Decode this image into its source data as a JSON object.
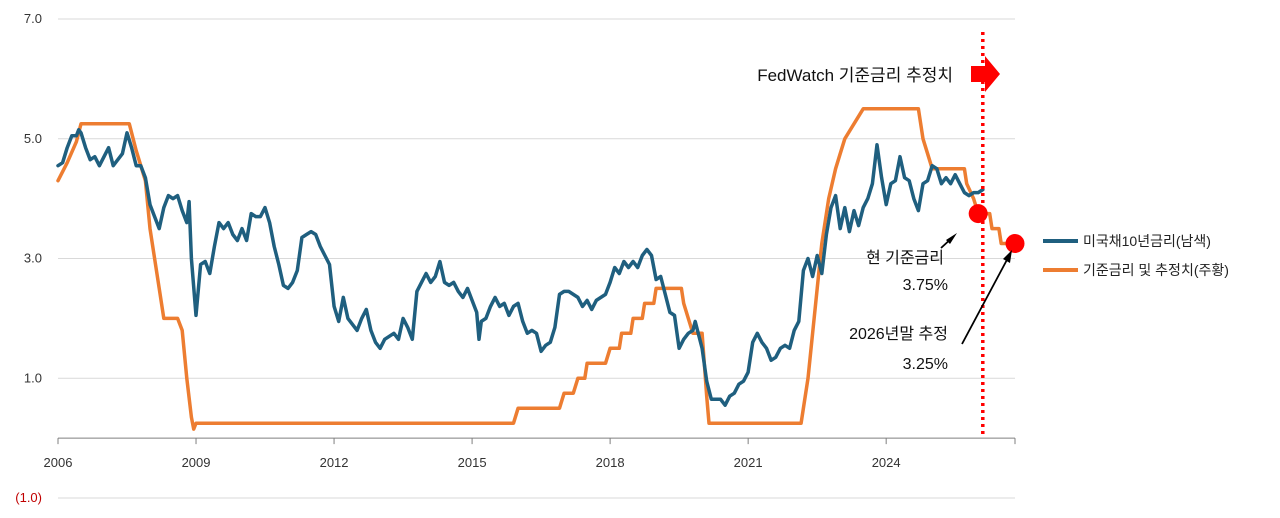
{
  "chart_data": {
    "type": "line",
    "yticks": [
      {
        "value": 7.0,
        "label": "7.0"
      },
      {
        "value": 5.0,
        "label": "5.0"
      },
      {
        "value": 3.0,
        "label": "3.0"
      },
      {
        "value": 1.0,
        "label": "1.0"
      },
      {
        "value": -1.0,
        "label": "(1.0)"
      }
    ],
    "xticks": [
      "2006",
      "2009",
      "2012",
      "2015",
      "2018",
      "2021",
      "2024"
    ],
    "xlim": [
      2006.0,
      2026.8
    ],
    "ylim": [
      -1.0,
      7.0
    ],
    "grid": true,
    "legend_position": "right",
    "colors": {
      "treasury": "#1f5f7f",
      "policy": "#ed7d31",
      "marker": "#ff0000",
      "forecast_line": "#ff0000"
    },
    "series": [
      {
        "name": "미국채10년금리(남색)",
        "color": "#1f5f7f",
        "points": [
          [
            2006.0,
            4.55
          ],
          [
            2006.1,
            4.6
          ],
          [
            2006.2,
            4.85
          ],
          [
            2006.3,
            5.05
          ],
          [
            2006.4,
            5.05
          ],
          [
            2006.45,
            5.15
          ],
          [
            2006.5,
            5.1
          ],
          [
            2006.6,
            4.85
          ],
          [
            2006.7,
            4.65
          ],
          [
            2006.8,
            4.7
          ],
          [
            2006.9,
            4.55
          ],
          [
            2007.0,
            4.7
          ],
          [
            2007.1,
            4.85
          ],
          [
            2007.2,
            4.55
          ],
          [
            2007.3,
            4.65
          ],
          [
            2007.4,
            4.75
          ],
          [
            2007.5,
            5.1
          ],
          [
            2007.6,
            4.85
          ],
          [
            2007.7,
            4.55
          ],
          [
            2007.8,
            4.55
          ],
          [
            2007.9,
            4.35
          ],
          [
            2008.0,
            3.9
          ],
          [
            2008.1,
            3.7
          ],
          [
            2008.2,
            3.5
          ],
          [
            2008.3,
            3.85
          ],
          [
            2008.4,
            4.05
          ],
          [
            2008.5,
            4.0
          ],
          [
            2008.6,
            4.05
          ],
          [
            2008.7,
            3.8
          ],
          [
            2008.8,
            3.6
          ],
          [
            2008.85,
            3.95
          ],
          [
            2008.9,
            3.0
          ],
          [
            2009.0,
            2.05
          ],
          [
            2009.1,
            2.9
          ],
          [
            2009.2,
            2.95
          ],
          [
            2009.3,
            2.75
          ],
          [
            2009.4,
            3.2
          ],
          [
            2009.5,
            3.6
          ],
          [
            2009.6,
            3.5
          ],
          [
            2009.7,
            3.6
          ],
          [
            2009.8,
            3.4
          ],
          [
            2009.9,
            3.3
          ],
          [
            2010.0,
            3.5
          ],
          [
            2010.1,
            3.3
          ],
          [
            2010.2,
            3.75
          ],
          [
            2010.3,
            3.7
          ],
          [
            2010.4,
            3.7
          ],
          [
            2010.5,
            3.85
          ],
          [
            2010.6,
            3.6
          ],
          [
            2010.7,
            3.2
          ],
          [
            2010.8,
            2.9
          ],
          [
            2010.9,
            2.55
          ],
          [
            2011.0,
            2.5
          ],
          [
            2011.1,
            2.6
          ],
          [
            2011.2,
            2.8
          ],
          [
            2011.3,
            3.35
          ],
          [
            2011.4,
            3.4
          ],
          [
            2011.5,
            3.45
          ],
          [
            2011.6,
            3.4
          ],
          [
            2011.7,
            3.2
          ],
          [
            2011.8,
            3.05
          ],
          [
            2011.9,
            2.9
          ],
          [
            2012.0,
            2.2
          ],
          [
            2012.1,
            1.95
          ],
          [
            2012.2,
            2.35
          ],
          [
            2012.3,
            2.0
          ],
          [
            2012.4,
            1.9
          ],
          [
            2012.5,
            1.8
          ],
          [
            2012.6,
            2.0
          ],
          [
            2012.7,
            2.15
          ],
          [
            2012.8,
            1.8
          ],
          [
            2012.9,
            1.6
          ],
          [
            2013.0,
            1.5
          ],
          [
            2013.1,
            1.65
          ],
          [
            2013.2,
            1.7
          ],
          [
            2013.3,
            1.75
          ],
          [
            2013.4,
            1.65
          ],
          [
            2013.5,
            2.0
          ],
          [
            2013.6,
            1.85
          ],
          [
            2013.7,
            1.65
          ],
          [
            2013.8,
            2.45
          ],
          [
            2013.9,
            2.6
          ],
          [
            2014.0,
            2.75
          ],
          [
            2014.1,
            2.6
          ],
          [
            2014.2,
            2.7
          ],
          [
            2014.3,
            2.95
          ],
          [
            2014.4,
            2.6
          ],
          [
            2014.5,
            2.55
          ],
          [
            2014.6,
            2.6
          ],
          [
            2014.7,
            2.45
          ],
          [
            2014.8,
            2.35
          ],
          [
            2014.9,
            2.5
          ],
          [
            2015.0,
            2.3
          ],
          [
            2015.1,
            2.1
          ],
          [
            2015.15,
            1.65
          ],
          [
            2015.2,
            1.95
          ],
          [
            2015.3,
            2.0
          ],
          [
            2015.4,
            2.2
          ],
          [
            2015.5,
            2.35
          ],
          [
            2015.6,
            2.2
          ],
          [
            2015.7,
            2.25
          ],
          [
            2015.8,
            2.05
          ],
          [
            2015.9,
            2.2
          ],
          [
            2016.0,
            2.25
          ],
          [
            2016.1,
            1.95
          ],
          [
            2016.2,
            1.75
          ],
          [
            2016.3,
            1.8
          ],
          [
            2016.4,
            1.75
          ],
          [
            2016.5,
            1.45
          ],
          [
            2016.6,
            1.55
          ],
          [
            2016.7,
            1.6
          ],
          [
            2016.8,
            1.85
          ],
          [
            2016.9,
            2.4
          ],
          [
            2017.0,
            2.45
          ],
          [
            2017.1,
            2.45
          ],
          [
            2017.2,
            2.4
          ],
          [
            2017.3,
            2.35
          ],
          [
            2017.4,
            2.2
          ],
          [
            2017.5,
            2.3
          ],
          [
            2017.6,
            2.15
          ],
          [
            2017.7,
            2.3
          ],
          [
            2017.8,
            2.35
          ],
          [
            2017.9,
            2.4
          ],
          [
            2018.0,
            2.6
          ],
          [
            2018.1,
            2.85
          ],
          [
            2018.2,
            2.75
          ],
          [
            2018.3,
            2.95
          ],
          [
            2018.4,
            2.85
          ],
          [
            2018.5,
            2.95
          ],
          [
            2018.6,
            2.85
          ],
          [
            2018.7,
            3.05
          ],
          [
            2018.8,
            3.15
          ],
          [
            2018.9,
            3.05
          ],
          [
            2019.0,
            2.65
          ],
          [
            2019.1,
            2.7
          ],
          [
            2019.2,
            2.4
          ],
          [
            2019.3,
            2.1
          ],
          [
            2019.4,
            2.05
          ],
          [
            2019.5,
            1.5
          ],
          [
            2019.6,
            1.65
          ],
          [
            2019.7,
            1.75
          ],
          [
            2019.8,
            1.8
          ],
          [
            2019.85,
            1.95
          ],
          [
            2019.9,
            1.8
          ],
          [
            2020.0,
            1.5
          ],
          [
            2020.1,
            0.95
          ],
          [
            2020.2,
            0.65
          ],
          [
            2020.3,
            0.65
          ],
          [
            2020.4,
            0.65
          ],
          [
            2020.5,
            0.55
          ],
          [
            2020.6,
            0.7
          ],
          [
            2020.7,
            0.75
          ],
          [
            2020.8,
            0.9
          ],
          [
            2020.9,
            0.95
          ],
          [
            2021.0,
            1.1
          ],
          [
            2021.1,
            1.6
          ],
          [
            2021.2,
            1.75
          ],
          [
            2021.3,
            1.6
          ],
          [
            2021.4,
            1.5
          ],
          [
            2021.5,
            1.3
          ],
          [
            2021.6,
            1.35
          ],
          [
            2021.7,
            1.5
          ],
          [
            2021.8,
            1.55
          ],
          [
            2021.9,
            1.5
          ],
          [
            2022.0,
            1.8
          ],
          [
            2022.1,
            1.95
          ],
          [
            2022.2,
            2.8
          ],
          [
            2022.3,
            3.0
          ],
          [
            2022.4,
            2.7
          ],
          [
            2022.5,
            3.05
          ],
          [
            2022.6,
            2.75
          ],
          [
            2022.7,
            3.4
          ],
          [
            2022.8,
            3.85
          ],
          [
            2022.9,
            4.05
          ],
          [
            2023.0,
            3.5
          ],
          [
            2023.1,
            3.85
          ],
          [
            2023.2,
            3.45
          ],
          [
            2023.3,
            3.8
          ],
          [
            2023.4,
            3.55
          ],
          [
            2023.5,
            3.85
          ],
          [
            2023.6,
            4.0
          ],
          [
            2023.7,
            4.25
          ],
          [
            2023.8,
            4.9
          ],
          [
            2023.9,
            4.35
          ],
          [
            2024.0,
            3.9
          ],
          [
            2024.1,
            4.25
          ],
          [
            2024.2,
            4.3
          ],
          [
            2024.3,
            4.7
          ],
          [
            2024.4,
            4.35
          ],
          [
            2024.5,
            4.3
          ],
          [
            2024.6,
            4.0
          ],
          [
            2024.7,
            3.8
          ],
          [
            2024.8,
            4.25
          ],
          [
            2024.9,
            4.3
          ],
          [
            2025.0,
            4.55
          ],
          [
            2025.1,
            4.5
          ],
          [
            2025.2,
            4.25
          ],
          [
            2025.3,
            4.35
          ],
          [
            2025.4,
            4.25
          ],
          [
            2025.5,
            4.4
          ],
          [
            2025.6,
            4.25
          ],
          [
            2025.7,
            4.1
          ],
          [
            2025.8,
            4.05
          ],
          [
            2025.9,
            4.1
          ],
          [
            2026.0,
            4.1
          ],
          [
            2026.1,
            4.15
          ]
        ]
      },
      {
        "name": "기준금리 및 추정치(주황)",
        "color": "#ed7d31",
        "points": [
          [
            2006.0,
            4.3
          ],
          [
            2006.2,
            4.6
          ],
          [
            2006.4,
            4.95
          ],
          [
            2006.5,
            5.25
          ],
          [
            2006.7,
            5.25
          ],
          [
            2007.0,
            5.25
          ],
          [
            2007.3,
            5.25
          ],
          [
            2007.55,
            5.25
          ],
          [
            2007.7,
            4.8
          ],
          [
            2007.9,
            4.3
          ],
          [
            2008.0,
            3.5
          ],
          [
            2008.1,
            3.0
          ],
          [
            2008.2,
            2.5
          ],
          [
            2008.3,
            2.0
          ],
          [
            2008.5,
            2.0
          ],
          [
            2008.6,
            2.0
          ],
          [
            2008.7,
            1.8
          ],
          [
            2008.8,
            1.0
          ],
          [
            2008.9,
            0.35
          ],
          [
            2008.95,
            0.15
          ],
          [
            2009.0,
            0.25
          ],
          [
            2015.9,
            0.25
          ],
          [
            2016.0,
            0.5
          ],
          [
            2016.9,
            0.5
          ],
          [
            2017.0,
            0.75
          ],
          [
            2017.2,
            0.75
          ],
          [
            2017.3,
            1.0
          ],
          [
            2017.45,
            1.0
          ],
          [
            2017.5,
            1.25
          ],
          [
            2017.9,
            1.25
          ],
          [
            2018.0,
            1.5
          ],
          [
            2018.2,
            1.5
          ],
          [
            2018.25,
            1.75
          ],
          [
            2018.45,
            1.75
          ],
          [
            2018.5,
            2.0
          ],
          [
            2018.7,
            2.0
          ],
          [
            2018.75,
            2.25
          ],
          [
            2018.95,
            2.25
          ],
          [
            2019.0,
            2.5
          ],
          [
            2019.55,
            2.5
          ],
          [
            2019.6,
            2.25
          ],
          [
            2019.7,
            2.0
          ],
          [
            2019.8,
            1.75
          ],
          [
            2020.0,
            1.75
          ],
          [
            2020.1,
            0.7
          ],
          [
            2020.15,
            0.25
          ],
          [
            2022.15,
            0.25
          ],
          [
            2022.2,
            0.5
          ],
          [
            2022.3,
            1.0
          ],
          [
            2022.4,
            1.75
          ],
          [
            2022.5,
            2.5
          ],
          [
            2022.6,
            3.25
          ],
          [
            2022.75,
            4.0
          ],
          [
            2022.9,
            4.5
          ],
          [
            2023.0,
            4.75
          ],
          [
            2023.1,
            5.0
          ],
          [
            2023.3,
            5.25
          ],
          [
            2023.5,
            5.5
          ],
          [
            2024.7,
            5.5
          ],
          [
            2024.8,
            5.0
          ],
          [
            2024.9,
            4.75
          ],
          [
            2025.0,
            4.5
          ],
          [
            2025.7,
            4.5
          ],
          [
            2025.75,
            4.25
          ],
          [
            2025.9,
            4.0
          ],
          [
            2026.0,
            3.75
          ],
          [
            2026.25,
            3.75
          ],
          [
            2026.3,
            3.5
          ],
          [
            2026.45,
            3.5
          ],
          [
            2026.5,
            3.25
          ],
          [
            2026.8,
            3.25
          ]
        ]
      }
    ],
    "markers": [
      {
        "x": 2026.0,
        "y": 3.75
      },
      {
        "x": 2026.8,
        "y": 3.25
      }
    ],
    "forecast_start": 2026.1
  },
  "annotations": {
    "fedwatch": "FedWatch 기준금리 추정치",
    "current_label": "현 기준금리",
    "current_value": "3.75%",
    "forecast_label": "2026년말 추정",
    "forecast_value": "3.25%"
  },
  "legend": [
    {
      "label": "미국채10년금리(남색)",
      "color": "#1f5f7f"
    },
    {
      "label": "기준금리 및 추정치(주황)",
      "color": "#ed7d31"
    }
  ]
}
